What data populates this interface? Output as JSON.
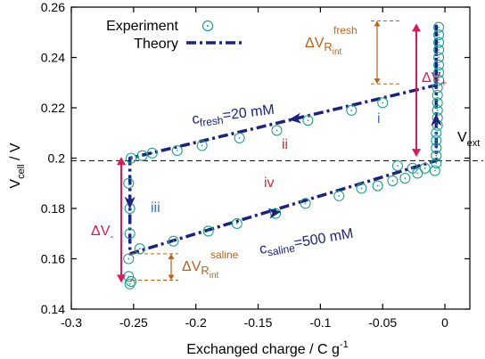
{
  "chart_data": {
    "type": "scatter",
    "title": "",
    "xlabel": "Exchanged charge / C g",
    "xlabel_sup": "-1",
    "ylabel_main": "V",
    "ylabel_sub": "cell",
    "ylabel_rest": " / V",
    "xlim": [
      -0.3,
      0.02
    ],
    "ylim": [
      0.14,
      0.26
    ],
    "x_ticks": [
      -0.3,
      -0.25,
      -0.2,
      -0.15,
      -0.1,
      -0.05,
      0
    ],
    "x_tick_labels": [
      "-0.3",
      "-0.25",
      "-0.2",
      "-0.15",
      "-0.1",
      "-0.05",
      "0"
    ],
    "y_ticks": [
      0.14,
      0.16,
      0.18,
      0.2,
      0.22,
      0.24,
      0.26
    ],
    "y_tick_labels": [
      "0.14",
      "0.16",
      "0.18",
      "0.2",
      "0.22",
      "0.24",
      "0.26"
    ],
    "grid": false,
    "legend_position": "top-left",
    "series": [
      {
        "name": "Experiment",
        "marker": "circle-with-dot",
        "color": "#20a090",
        "points": [
          [
            -0.005,
            0.252
          ],
          [
            -0.005,
            0.249
          ],
          [
            -0.005,
            0.246
          ],
          [
            -0.005,
            0.243
          ],
          [
            -0.005,
            0.24
          ],
          [
            -0.005,
            0.237
          ],
          [
            -0.005,
            0.234
          ],
          [
            -0.005,
            0.231
          ],
          [
            -0.006,
            0.228
          ],
          [
            -0.006,
            0.225
          ],
          [
            -0.006,
            0.222
          ],
          [
            -0.006,
            0.219
          ],
          [
            -0.006,
            0.216
          ],
          [
            -0.006,
            0.213
          ],
          [
            -0.007,
            0.21
          ],
          [
            -0.007,
            0.207
          ],
          [
            -0.007,
            0.204
          ],
          [
            -0.007,
            0.201
          ],
          [
            -0.007,
            0.198
          ],
          [
            -0.008,
            0.195
          ],
          [
            -0.016,
            0.196
          ],
          [
            -0.026,
            0.196
          ],
          [
            -0.038,
            0.197
          ],
          [
            -0.05,
            0.222
          ],
          [
            -0.075,
            0.219
          ],
          [
            -0.11,
            0.215
          ],
          [
            -0.135,
            0.211
          ],
          [
            -0.165,
            0.208
          ],
          [
            -0.195,
            0.205
          ],
          [
            -0.215,
            0.203
          ],
          [
            -0.235,
            0.202
          ],
          [
            -0.243,
            0.201
          ],
          [
            -0.252,
            0.2
          ],
          [
            -0.254,
            0.19
          ],
          [
            -0.253,
            0.18
          ],
          [
            -0.253,
            0.17
          ],
          [
            -0.254,
            0.16
          ],
          [
            -0.254,
            0.153
          ],
          [
            -0.253,
            0.15
          ],
          [
            -0.252,
            0.151
          ],
          [
            -0.245,
            0.164
          ],
          [
            -0.218,
            0.167
          ],
          [
            -0.19,
            0.171
          ],
          [
            -0.167,
            0.174
          ],
          [
            -0.136,
            0.178
          ],
          [
            -0.112,
            0.182
          ],
          [
            -0.085,
            0.185
          ],
          [
            -0.067,
            0.188
          ],
          [
            -0.054,
            0.189
          ],
          [
            -0.042,
            0.191
          ],
          [
            -0.032,
            0.192
          ],
          [
            -0.022,
            0.194
          ]
        ]
      },
      {
        "name": "Theory",
        "line_style": "dash-dot",
        "color": "#1a237e",
        "points": [
          [
            -0.007,
            0.253
          ],
          [
            -0.007,
            0.229
          ],
          [
            -0.253,
            0.2
          ],
          [
            -0.253,
            0.162
          ],
          [
            -0.007,
            0.199
          ],
          [
            -0.007,
            0.253
          ]
        ]
      }
    ],
    "reference_line": {
      "y": 0.199,
      "style": "dashed",
      "label": "V",
      "label_sub": "ext"
    },
    "annotations": {
      "dv_plus": {
        "label": "ΔV",
        "sub": "+"
      },
      "dv_minus": {
        "label": "ΔV",
        "sub": "-"
      },
      "dv_rint_fresh": {
        "label": "ΔV",
        "sub": "R",
        "subsub": "int",
        "sup": "fresh"
      },
      "dv_rint_saline": {
        "label": "ΔV",
        "sub": "R",
        "subsub": "int",
        "sup": "saline"
      },
      "c_fresh": {
        "c": "c",
        "sub": "fresh",
        "rest": "=20 mM"
      },
      "c_saline": {
        "c": "c",
        "sub": "saline",
        "rest": "=500 mM"
      },
      "stage_i": "i",
      "stage_ii": "ii",
      "stage_iii": "iii",
      "stage_iv": "iv"
    },
    "colors": {
      "theory": "#1a237e",
      "experiment": "#20a090",
      "delta_v": "#d81b60",
      "rint": "#b5651d",
      "stage_blue": "#3b6fd4",
      "stage_red": "#d32f2f"
    }
  }
}
